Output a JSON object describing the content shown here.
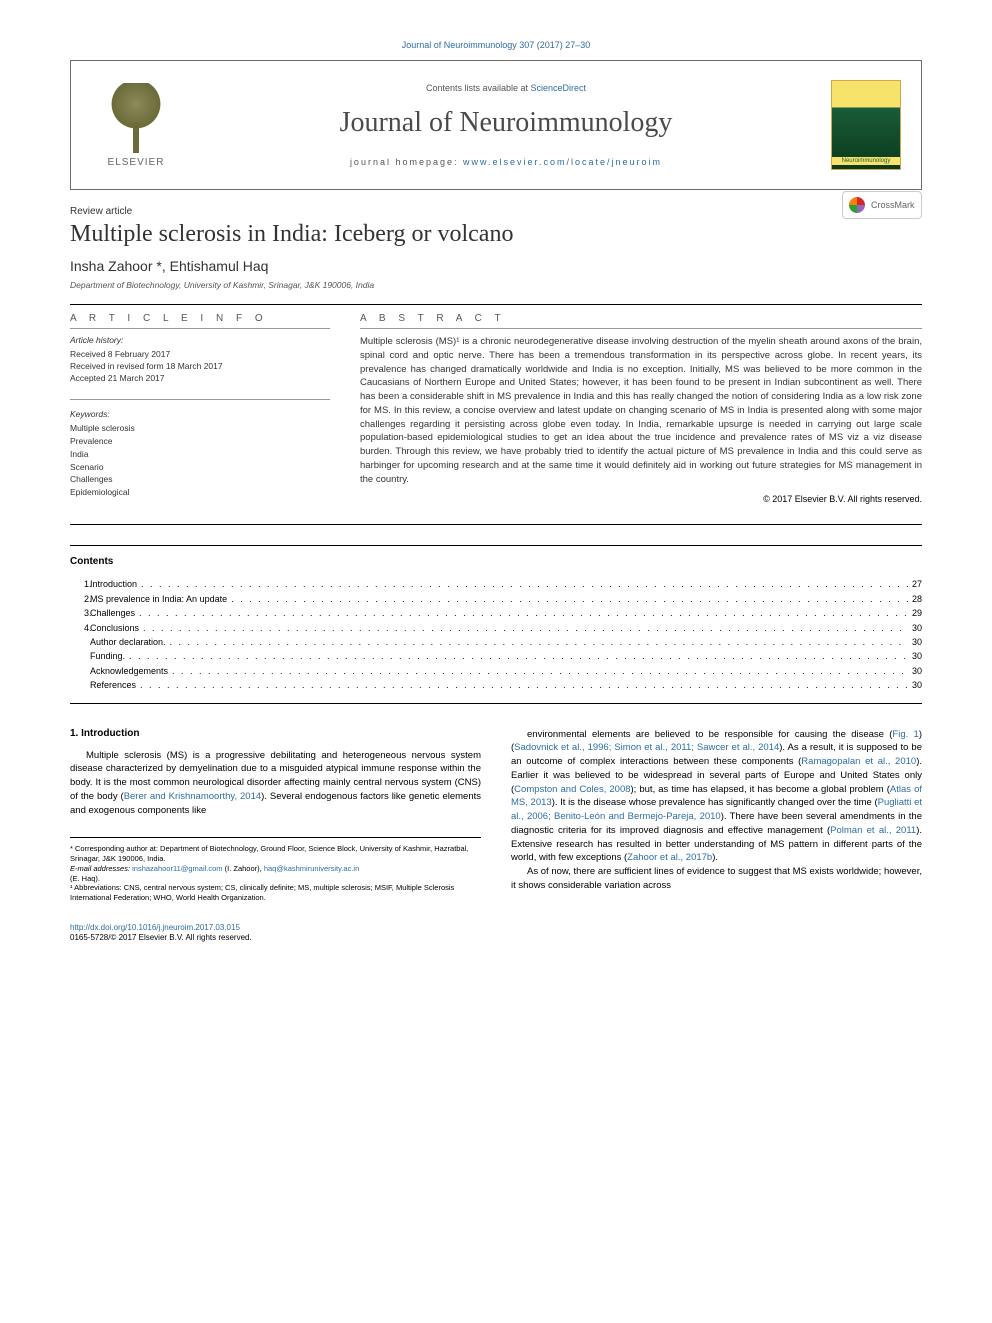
{
  "journal_ref": "Journal of Neuroimmunology 307 (2017) 27–30",
  "journal_ref_link": "Journal of Neuroimmunology 307 (2017) 27–30",
  "header": {
    "contents_prefix": "Contents lists available at ",
    "contents_link": "ScienceDirect",
    "journal_name": "Journal of Neuroimmunology",
    "homepage_prefix": "journal homepage: ",
    "homepage_link": "www.elsevier.com/locate/jneuroim",
    "elsevier_label": "ELSEVIER",
    "cover_label": "Neuroimmunology"
  },
  "article": {
    "type": "Review article",
    "title": "Multiple sclerosis in India: Iceberg or volcano",
    "crossmark": "CrossMark",
    "authors": "Insha Zahoor *, Ehtishamul Haq",
    "affiliation": "Department of Biotechnology, University of Kashmir, Srinagar, J&K 190006, India"
  },
  "info_head": "A R T I C L E    I N F O",
  "abstract_head": "A B S T R A C T",
  "history": {
    "label": "Article history:",
    "received": "Received 8 February 2017",
    "revised": "Received in revised form 18 March 2017",
    "accepted": "Accepted 21 March 2017"
  },
  "keywords": {
    "label": "Keywords:",
    "list": [
      "Multiple sclerosis",
      "Prevalence",
      "India",
      "Scenario",
      "Challenges",
      "Epidemiological"
    ]
  },
  "abstract": "Multiple sclerosis (MS)¹ is a chronic neurodegenerative disease involving destruction of the myelin sheath around axons of the brain, spinal cord and optic nerve. There has been a tremendous transformation in its perspective across globe. In recent years, its prevalence has changed dramatically worldwide and India is no exception. Initially, MS was believed to be more common in the Caucasians of Northern Europe and United States; however, it has been found to be present in Indian subcontinent as well. There has been a considerable shift in MS prevalence in India and this has really changed the notion of considering India as a low risk zone for MS. In this review, a concise overview and latest update on changing scenario of MS in India is presented along with some major challenges regarding it persisting across globe even today. In India, remarkable upsurge is needed in carrying out large scale population-based epidemiological studies to get an idea about the true incidence and prevalence rates of MS viz a viz disease burden. Through this review, we have probably tried to identify the actual picture of MS prevalence in India and this could serve as harbinger for upcoming research and at the same time it would definitely aid in working out future strategies for MS management in the country.",
  "copyright": "© 2017 Elsevier B.V. All rights reserved.",
  "contents_heading": "Contents",
  "toc": [
    {
      "num": "1.",
      "label": "Introduction",
      "page": "27"
    },
    {
      "num": "2.",
      "label": "MS prevalence in India: An update",
      "page": "28"
    },
    {
      "num": "3.",
      "label": "Challenges",
      "page": "29"
    },
    {
      "num": "4.",
      "label": "Conclusions",
      "page": "30"
    },
    {
      "num": "",
      "label": "Author declaration.",
      "page": "30"
    },
    {
      "num": "",
      "label": "Funding.",
      "page": "30"
    },
    {
      "num": "",
      "label": "Acknowledgements",
      "page": "30"
    },
    {
      "num": "",
      "label": "References",
      "page": "30"
    }
  ],
  "intro_heading": "1. Introduction",
  "intro_left": "Multiple sclerosis (MS) is a progressive debilitating and heterogeneous nervous system disease characterized by demyelination due to a misguided atypical immune response within the body. It is the most common neurological disorder affecting mainly central nervous system (CNS) of the body (Berer and Krishnamoorthy, 2014). Several endogenous factors like genetic elements and exogenous components like",
  "intro_right_1": "environmental elements are believed to be responsible for causing the disease (Fig. 1) (Sadovnick et al., 1996; Simon et al., 2011; Sawcer et al., 2014). As a result, it is supposed to be an outcome of complex interactions between these components (Ramagopalan et al., 2010). Earlier it was believed to be widespread in several parts of Europe and United States only (Compston and Coles, 2008); but, as time has elapsed, it has become a global problem (Atlas of MS, 2013). It is the disease whose prevalence has significantly changed over the time (Pugliatti et al., 2006; Benito-León and Bermejo-Pareja, 2010). There have been several amendments in the diagnostic criteria for its improved diagnosis and effective management (Polman et al., 2011). Extensive research has resulted in better understanding of MS pattern in different parts of the world, with few exceptions (Zahoor et al., 2017b).",
  "intro_right_2": "As of now, there are sufficient lines of evidence to suggest that MS exists worldwide; however, it shows considerable variation across",
  "footnotes": {
    "corr": "* Corresponding author at: Department of Biotechnology, Ground Floor, Science Block, University of Kashmir, Hazratbal, Srinagar, J&K 190006, India.",
    "email_label": "E-mail addresses: ",
    "email1": "inshazahoor11@gmail.com",
    "email1_who": " (I. Zahoor), ",
    "email2": "haq@kashmiruniversity.ac.in",
    "email2_who": " (E. Haq).",
    "abbr": "¹ Abbreviations: CNS, central nervous system; CS, clinically definite; MS, multiple sclerosis; MSIF, Multiple Sclerosis International Federation; WHO, World Health Organization."
  },
  "footer": {
    "doi": "http://dx.doi.org/10.1016/j.jneuroim.2017.03.015",
    "rights": "0165-5728/© 2017 Elsevier B.V. All rights reserved."
  },
  "colors": {
    "link": "#2e6da4",
    "text": "#333333"
  },
  "font_sizes": {
    "journal_name": 28,
    "title": 24,
    "authors": 14,
    "body": 9.5
  }
}
